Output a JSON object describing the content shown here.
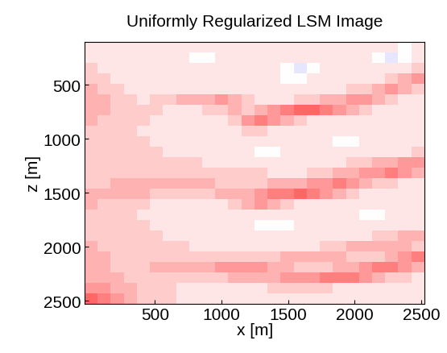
{
  "chart_data": {
    "type": "heatmap",
    "title": "Uniformly Regularized LSM Image",
    "x_label": "x [m]",
    "y_label": "z [m]",
    "xlim": [
      -25,
      2525
    ],
    "ylim": [
      2525,
      100
    ],
    "xticks": [
      500,
      1000,
      1500,
      2000,
      2500
    ],
    "yticks": [
      500,
      1000,
      1500,
      2000,
      2500
    ],
    "clim": [
      -10,
      10
    ],
    "cells": [
      [
        1,
        1,
        1,
        1,
        1,
        1,
        1,
        1,
        1,
        1,
        1,
        1,
        1,
        1,
        1,
        1,
        1,
        1,
        1,
        1,
        1,
        1,
        1,
        1,
        0,
        1
      ],
      [
        1,
        1,
        1,
        1,
        1,
        1,
        1,
        1,
        0,
        0,
        1,
        1,
        1,
        1,
        1,
        1,
        1,
        1,
        1,
        1,
        1,
        1,
        0,
        -1,
        0,
        1
      ],
      [
        2,
        1,
        1,
        1,
        1,
        1,
        1,
        1,
        1,
        1,
        1,
        1,
        1,
        1,
        1,
        0,
        -1,
        0,
        1,
        1,
        1,
        1,
        1,
        1,
        1,
        2
      ],
      [
        2,
        2,
        1,
        1,
        1,
        1,
        1,
        1,
        1,
        1,
        1,
        1,
        1,
        1,
        1,
        0,
        0,
        1,
        1,
        1,
        1,
        1,
        1,
        2,
        3,
        4
      ],
      [
        3,
        2,
        2,
        1,
        1,
        1,
        1,
        1,
        1,
        1,
        1,
        1,
        1,
        1,
        1,
        1,
        1,
        1,
        1,
        1,
        2,
        2,
        3,
        4,
        3,
        2
      ],
      [
        3,
        3,
        2,
        2,
        1,
        2,
        2,
        3,
        3,
        3,
        4,
        3,
        2,
        1,
        1,
        1,
        2,
        2,
        3,
        3,
        4,
        4,
        3,
        2,
        1,
        1
      ],
      [
        3,
        3,
        2,
        2,
        2,
        2,
        1,
        1,
        1,
        2,
        2,
        3,
        2,
        3,
        4,
        5,
        6,
        6,
        5,
        4,
        3,
        2,
        1,
        1,
        1,
        1
      ],
      [
        3,
        2,
        2,
        2,
        2,
        1,
        1,
        1,
        1,
        1,
        1,
        2,
        4,
        5,
        4,
        3,
        2,
        1,
        1,
        1,
        1,
        1,
        1,
        1,
        1,
        1
      ],
      [
        2,
        2,
        2,
        2,
        1,
        1,
        1,
        1,
        1,
        1,
        1,
        1,
        2,
        2,
        1,
        1,
        1,
        1,
        1,
        1,
        1,
        1,
        1,
        1,
        1,
        1
      ],
      [
        2,
        2,
        2,
        2,
        2,
        1,
        1,
        1,
        1,
        1,
        1,
        1,
        1,
        1,
        1,
        1,
        1,
        1,
        1,
        0,
        0,
        1,
        1,
        1,
        1,
        1
      ],
      [
        2,
        2,
        2,
        2,
        2,
        2,
        1,
        1,
        1,
        1,
        1,
        1,
        1,
        0,
        0,
        1,
        1,
        1,
        1,
        1,
        1,
        1,
        1,
        1,
        1,
        2
      ],
      [
        2,
        2,
        2,
        2,
        2,
        2,
        2,
        2,
        2,
        1,
        1,
        1,
        1,
        1,
        1,
        1,
        1,
        1,
        1,
        1,
        2,
        2,
        3,
        3,
        4,
        4
      ],
      [
        2,
        2,
        2,
        2,
        2,
        2,
        2,
        2,
        2,
        2,
        2,
        2,
        2,
        2,
        1,
        1,
        1,
        2,
        2,
        3,
        3,
        4,
        4,
        5,
        4,
        3
      ],
      [
        2,
        2,
        3,
        3,
        3,
        3,
        3,
        3,
        3,
        3,
        2,
        2,
        2,
        2,
        3,
        3,
        3,
        4,
        4,
        5,
        4,
        3,
        2,
        2,
        1,
        1
      ],
      [
        3,
        3,
        3,
        3,
        3,
        2,
        2,
        2,
        2,
        2,
        3,
        3,
        3,
        4,
        5,
        5,
        6,
        5,
        4,
        3,
        2,
        1,
        1,
        1,
        1,
        1
      ],
      [
        3,
        2,
        2,
        2,
        2,
        1,
        1,
        1,
        1,
        1,
        1,
        2,
        3,
        4,
        3,
        2,
        1,
        1,
        1,
        1,
        1,
        1,
        1,
        1,
        1,
        1
      ],
      [
        2,
        2,
        2,
        2,
        1,
        1,
        1,
        1,
        1,
        1,
        1,
        1,
        1,
        1,
        1,
        1,
        1,
        1,
        1,
        1,
        1,
        0,
        0,
        1,
        1,
        1
      ],
      [
        2,
        2,
        2,
        2,
        2,
        1,
        1,
        1,
        1,
        1,
        1,
        1,
        1,
        0,
        0,
        0,
        1,
        1,
        1,
        1,
        1,
        1,
        1,
        1,
        1,
        1
      ],
      [
        2,
        2,
        2,
        2,
        2,
        2,
        1,
        1,
        1,
        1,
        1,
        1,
        1,
        1,
        1,
        1,
        1,
        1,
        1,
        1,
        1,
        1,
        2,
        2,
        3,
        3
      ],
      [
        3,
        2,
        2,
        2,
        2,
        2,
        2,
        2,
        1,
        1,
        1,
        1,
        1,
        1,
        1,
        1,
        1,
        1,
        2,
        2,
        3,
        3,
        3,
        3,
        3,
        2
      ],
      [
        3,
        3,
        2,
        2,
        2,
        2,
        2,
        2,
        2,
        2,
        2,
        2,
        2,
        2,
        2,
        3,
        3,
        3,
        3,
        3,
        2,
        2,
        2,
        3,
        4,
        5
      ],
      [
        3,
        3,
        2,
        2,
        2,
        3,
        3,
        3,
        3,
        3,
        4,
        4,
        4,
        4,
        3,
        3,
        2,
        2,
        2,
        3,
        3,
        4,
        5,
        5,
        4,
        3
      ],
      [
        3,
        3,
        3,
        2,
        2,
        2,
        2,
        2,
        2,
        2,
        2,
        3,
        3,
        3,
        3,
        4,
        4,
        4,
        5,
        5,
        5,
        4,
        3,
        2,
        2,
        1
      ],
      [
        4,
        4,
        3,
        3,
        2,
        2,
        2,
        1,
        1,
        1,
        1,
        1,
        1,
        1,
        2,
        2,
        2,
        2,
        2,
        1,
        1,
        1,
        1,
        1,
        1,
        1
      ],
      [
        6,
        5,
        4,
        3,
        2,
        2,
        2,
        1,
        1,
        1,
        1,
        1,
        1,
        1,
        1,
        1,
        1,
        1,
        1,
        1,
        1,
        1,
        1,
        1,
        1,
        1
      ]
    ]
  }
}
